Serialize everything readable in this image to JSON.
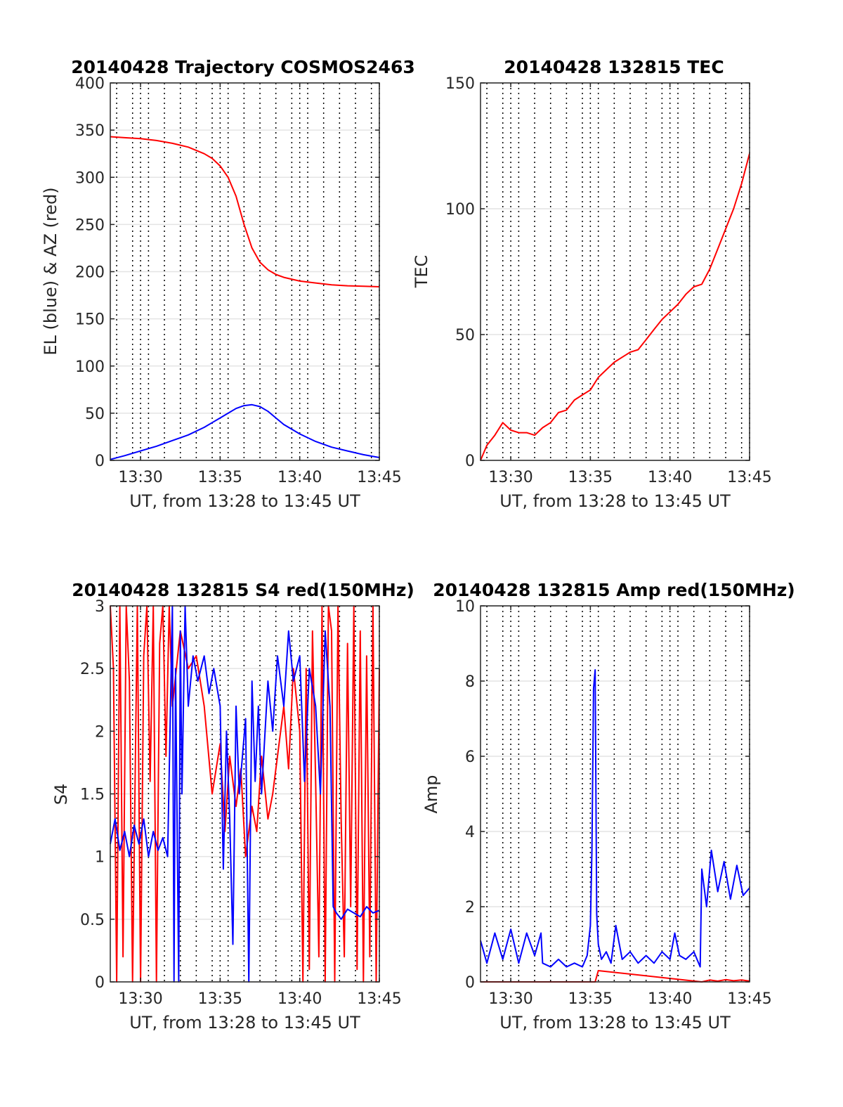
{
  "chart_data": [
    {
      "type": "line",
      "title": "20140428 Trajectory COSMOS2463",
      "xlabel": "UT, from 13:28 to 13:45 UT",
      "ylabel": "EL (blue) & AZ (red)",
      "x_ticks": [
        "13:30",
        "13:35",
        "13:40",
        "13:45"
      ],
      "x_tick_minutes": [
        30,
        35,
        40,
        45
      ],
      "xlim_minutes": [
        28.1,
        45
      ],
      "ylim": [
        0,
        400
      ],
      "y_ticks": [
        0,
        50,
        100,
        150,
        200,
        250,
        300,
        350,
        400
      ],
      "grid": true,
      "series": [
        {
          "color": "#ff0000",
          "x": [
            28.1,
            29,
            30,
            31,
            32,
            33,
            34,
            34.5,
            35,
            35.5,
            36,
            36.5,
            37,
            37.5,
            38,
            38.5,
            39,
            40,
            41,
            42,
            43,
            44,
            45
          ],
          "y": [
            343,
            342,
            341,
            339,
            336,
            332,
            325,
            320,
            312,
            300,
            280,
            250,
            225,
            210,
            202,
            197,
            194,
            190,
            188,
            186,
            185,
            184.5,
            184
          ]
        },
        {
          "color": "#0000ff",
          "x": [
            28.1,
            29,
            30,
            31,
            32,
            33,
            34,
            34.5,
            35,
            35.5,
            36,
            36.5,
            37,
            37.5,
            38,
            38.5,
            39,
            40,
            41,
            42,
            43,
            44,
            45
          ],
          "y": [
            1,
            5,
            10,
            15,
            21,
            27,
            35,
            40,
            45,
            50,
            55,
            58,
            59,
            57,
            52,
            45,
            38,
            28,
            20,
            14,
            10,
            6,
            3
          ]
        }
      ]
    },
    {
      "type": "line",
      "title": "20140428 132815 TEC",
      "xlabel": "UT, from 13:28 to 13:45 UT",
      "ylabel": "TEC",
      "x_ticks": [
        "13:30",
        "13:35",
        "13:40",
        "13:45"
      ],
      "x_tick_minutes": [
        30,
        35,
        40,
        45
      ],
      "xlim_minutes": [
        28.1,
        45
      ],
      "ylim": [
        0,
        150
      ],
      "y_ticks": [
        0,
        50,
        100,
        150
      ],
      "grid": true,
      "series": [
        {
          "color": "#ff0000",
          "x": [
            28.1,
            28.5,
            29,
            29.5,
            30,
            30.5,
            31,
            31.5,
            32,
            32.5,
            33,
            33.5,
            34,
            34.5,
            35,
            35.5,
            36,
            36.5,
            37,
            37.5,
            38,
            38.5,
            39,
            39.5,
            40,
            40.5,
            41,
            41.5,
            42,
            42.5,
            43,
            43.5,
            44,
            44.5,
            45
          ],
          "y": [
            0,
            6,
            10,
            15,
            12,
            11,
            11,
            10,
            13,
            15,
            19,
            20,
            24,
            26,
            28,
            33,
            36,
            39,
            41,
            43,
            44,
            48,
            52,
            56,
            59,
            62,
            66,
            69,
            70,
            76,
            84,
            92,
            100,
            110,
            122
          ]
        }
      ]
    },
    {
      "type": "line",
      "title": "20140428 132815 S4 red(150MHz)",
      "xlabel": "UT, from 13:28 to 13:45 UT",
      "ylabel": "S4",
      "x_ticks": [
        "13:30",
        "13:35",
        "13:40",
        "13:45"
      ],
      "x_tick_minutes": [
        30,
        35,
        40,
        45
      ],
      "xlim_minutes": [
        28.1,
        45
      ],
      "ylim": [
        0,
        3
      ],
      "y_ticks": [
        "0",
        "0.5",
        "1",
        "1.5",
        "2",
        "2.5",
        "3"
      ],
      "grid": true,
      "series": [
        {
          "color": "#ff0000",
          "x": [
            28.1,
            28.3,
            28.5,
            28.7,
            28.9,
            29.1,
            29.3,
            29.5,
            29.8,
            30,
            30.2,
            30.4,
            30.6,
            30.8,
            31,
            31.2,
            31.4,
            31.6,
            31.8,
            32,
            32.5,
            33,
            33.5,
            34,
            34.5,
            35,
            35.3,
            35.6,
            36,
            36.3,
            36.6,
            37,
            37.3,
            37.6,
            38,
            38.3,
            38.6,
            39,
            39.3,
            39.6,
            40,
            40.2,
            40.4,
            40.6,
            40.8,
            41,
            41.2,
            41.4,
            41.6,
            41.8,
            42,
            42.2,
            42.4,
            42.6,
            42.8,
            43,
            43.2,
            43.4,
            43.6,
            43.8,
            44,
            44.2,
            44.4,
            44.6,
            44.8,
            45
          ],
          "y": [
            3,
            2.5,
            0,
            3,
            0.2,
            3,
            2.4,
            0,
            3,
            0,
            2.6,
            3,
            1.6,
            3,
            0,
            2.7,
            3,
            1.8,
            3,
            2.2,
            2.8,
            2.5,
            2.6,
            2.2,
            1.5,
            1.9,
            1.2,
            1.8,
            1.4,
            1.7,
            1.0,
            1.4,
            1.2,
            1.8,
            1.3,
            1.5,
            1.8,
            2.2,
            1.7,
            2.5,
            2.0,
            0,
            2.5,
            0.1,
            2.8,
            1.6,
            0.2,
            3,
            0,
            3,
            2.8,
            0,
            3,
            1.3,
            0.2,
            2.7,
            0.6,
            3,
            0.1,
            2.8,
            0,
            2.6,
            0.2,
            3,
            0,
            2.5
          ]
        },
        {
          "color": "#0000ff",
          "x": [
            28.1,
            28.4,
            28.7,
            29,
            29.3,
            29.6,
            29.9,
            30.2,
            30.5,
            30.8,
            31.1,
            31.4,
            31.7,
            32,
            32.1,
            32.2,
            32.4,
            32.5,
            32.6,
            32.8,
            33,
            33.3,
            33.6,
            34,
            34.3,
            34.6,
            35,
            35.2,
            35.4,
            35.6,
            35.8,
            36,
            36.2,
            36.4,
            36.6,
            36.8,
            37,
            37.2,
            37.4,
            37.6,
            38,
            38.3,
            38.6,
            39,
            39.3,
            39.6,
            40,
            40.3,
            40.6,
            41,
            41.3,
            41.6,
            41.9,
            42.1,
            42.3,
            42.6,
            43,
            43.4,
            43.8,
            44.2,
            44.6,
            45
          ],
          "y": [
            1.1,
            1.3,
            1.05,
            1.2,
            1.0,
            1.25,
            1.1,
            1.3,
            1.0,
            1.2,
            1.05,
            1.15,
            1.0,
            3,
            0,
            2.5,
            0,
            2.8,
            1.5,
            3,
            2.2,
            2.6,
            2.4,
            2.6,
            2.3,
            2.5,
            2.2,
            0.9,
            2.0,
            1.3,
            0.3,
            2.2,
            1.5,
            1.8,
            2.1,
            0,
            2.4,
            1.6,
            2.2,
            1.5,
            2.4,
            2.0,
            2.6,
            2.2,
            2.8,
            2.4,
            2.6,
            1.6,
            2.5,
            2.2,
            1.5,
            2.8,
            2.2,
            0.6,
            0.55,
            0.5,
            0.58,
            0.55,
            0.52,
            0.6,
            0.55,
            0.57
          ]
        }
      ]
    },
    {
      "type": "line",
      "title": "20140428 132815 Amp red(150MHz)",
      "xlabel": "UT, from 13:28 to 13:45 UT",
      "ylabel": "Amp",
      "x_ticks": [
        "13:30",
        "13:35",
        "13:40",
        "13:45"
      ],
      "x_tick_minutes": [
        30,
        35,
        40,
        45
      ],
      "xlim_minutes": [
        28.1,
        45
      ],
      "ylim": [
        0,
        10
      ],
      "y_ticks": [
        0,
        2,
        4,
        6,
        8,
        10
      ],
      "grid": true,
      "series": [
        {
          "color": "#ff0000",
          "x": [
            28.1,
            35.3,
            35.5,
            42,
            42.5,
            43,
            43.5,
            44,
            44.5,
            45
          ],
          "y": [
            0,
            0,
            0.3,
            0,
            0.05,
            0.02,
            0.06,
            0.03,
            0.05,
            0.02
          ]
        },
        {
          "color": "#0000ff",
          "x": [
            28.1,
            28.5,
            29,
            29.5,
            30,
            30.5,
            31,
            31.5,
            31.9,
            32,
            32.5,
            33,
            33.5,
            34,
            34.5,
            34.8,
            35.0,
            35.1,
            35.2,
            35.3,
            35.4,
            35.5,
            35.7,
            36,
            36.3,
            36.6,
            37,
            37.5,
            38,
            38.5,
            39,
            39.5,
            40,
            40.3,
            40.6,
            41,
            41.5,
            41.9,
            42.0,
            42.3,
            42.6,
            43,
            43.4,
            43.8,
            44.2,
            44.6,
            45
          ],
          "y": [
            1.1,
            0.5,
            1.3,
            0.6,
            1.4,
            0.5,
            1.3,
            0.7,
            1.3,
            0.5,
            0.4,
            0.6,
            0.4,
            0.5,
            0.4,
            0.7,
            1.5,
            3.5,
            7.8,
            8.3,
            1.8,
            1.0,
            0.6,
            0.8,
            0.5,
            1.5,
            0.6,
            0.8,
            0.5,
            0.7,
            0.5,
            0.8,
            0.6,
            1.3,
            0.7,
            0.6,
            0.8,
            0.4,
            3.0,
            2.0,
            3.5,
            2.4,
            3.2,
            2.2,
            3.1,
            2.3,
            2.5
          ]
        }
      ]
    }
  ]
}
